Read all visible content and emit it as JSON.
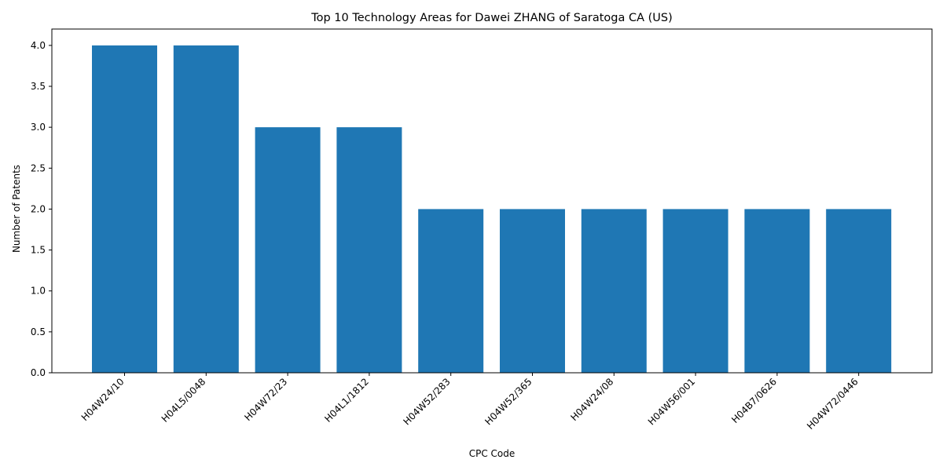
{
  "chart_data": {
    "type": "bar",
    "title": "Top 10 Technology Areas for Dawei ZHANG of Saratoga CA (US)",
    "xlabel": "CPC Code",
    "ylabel": "Number of Patents",
    "categories": [
      "H04W24/10",
      "H04L5/0048",
      "H04W72/23",
      "H04L1/1812",
      "H04W52/283",
      "H04W52/365",
      "H04W24/08",
      "H04W56/001",
      "H04B7/0626",
      "H04W72/0446"
    ],
    "values": [
      4,
      4,
      3,
      3,
      2,
      2,
      2,
      2,
      2,
      2
    ],
    "ylim": [
      0,
      4.2
    ],
    "yticks": [
      "0.0",
      "0.5",
      "1.0",
      "1.5",
      "2.0",
      "2.5",
      "3.0",
      "3.5",
      "4.0"
    ],
    "bar_color": "#1f77b4",
    "grid": false,
    "legend": false
  }
}
